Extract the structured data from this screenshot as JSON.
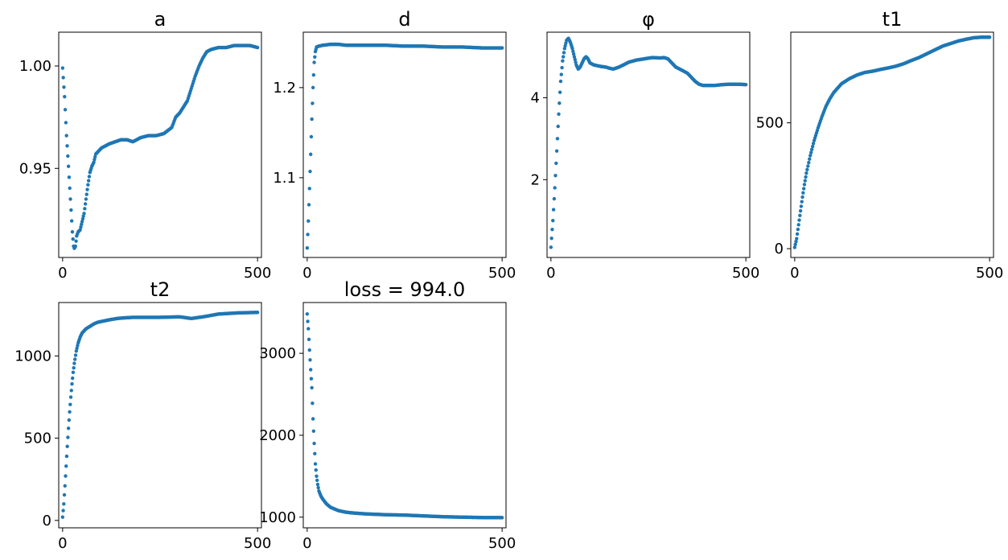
{
  "chart_data": [
    {
      "type": "scatter",
      "title": "a",
      "xlabel": "",
      "ylabel": "",
      "xlim": [
        -10,
        510
      ],
      "ylim": [
        0.9065,
        1.0165
      ],
      "xticks": [
        0,
        500
      ],
      "xtick_labels": [
        "0",
        "500"
      ],
      "yticks": [
        0.95,
        1.0
      ],
      "ytick_labels": [
        "0.95",
        "1.00"
      ],
      "color": "#1f77b4",
      "x": [
        0,
        5,
        10,
        15,
        20,
        25,
        28,
        30,
        33,
        36,
        40,
        45,
        50,
        55,
        60,
        65,
        70,
        75,
        80,
        85,
        90,
        100,
        110,
        120,
        135,
        150,
        165,
        180,
        200,
        220,
        240,
        260,
        280,
        290,
        300,
        310,
        320,
        330,
        340,
        350,
        360,
        370,
        380,
        400,
        420,
        440,
        460,
        480,
        500
      ],
      "y": [
        0.999,
        0.985,
        0.966,
        0.951,
        0.935,
        0.919,
        0.912,
        0.911,
        0.912,
        0.917,
        0.919,
        0.92,
        0.924,
        0.928,
        0.935,
        0.942,
        0.948,
        0.951,
        0.953,
        0.957,
        0.958,
        0.96,
        0.961,
        0.962,
        0.963,
        0.964,
        0.964,
        0.963,
        0.965,
        0.966,
        0.966,
        0.967,
        0.97,
        0.975,
        0.977,
        0.98,
        0.983,
        0.989,
        0.995,
        1.0,
        1.004,
        1.007,
        1.008,
        1.009,
        1.009,
        1.01,
        1.01,
        1.01,
        1.009
      ]
    },
    {
      "type": "scatter",
      "title": "d",
      "xlabel": "",
      "ylabel": "",
      "xlim": [
        -10,
        510
      ],
      "ylim": [
        1.0115,
        1.2615
      ],
      "xticks": [
        0,
        500
      ],
      "xtick_labels": [
        "0",
        "500"
      ],
      "yticks": [
        1.1,
        1.2
      ],
      "ytick_labels": [
        "1.1",
        "1.2"
      ],
      "color": "#1f77b4",
      "x": [
        0,
        3,
        6,
        9,
        12,
        15,
        18,
        21,
        24,
        30,
        40,
        60,
        80,
        100,
        150,
        200,
        250,
        300,
        350,
        400,
        450,
        500
      ],
      "y": [
        1.022,
        1.052,
        1.088,
        1.126,
        1.165,
        1.2,
        1.228,
        1.24,
        1.245,
        1.246,
        1.247,
        1.248,
        1.248,
        1.247,
        1.247,
        1.247,
        1.246,
        1.246,
        1.245,
        1.245,
        1.244,
        1.244
      ]
    },
    {
      "type": "scatter",
      "title": "φ",
      "xlabel": "",
      "ylabel": "",
      "xlim": [
        -10,
        510
      ],
      "ylim": [
        0.1,
        5.6
      ],
      "xticks": [
        0,
        500
      ],
      "xtick_labels": [
        "0",
        "500"
      ],
      "yticks": [
        2,
        4
      ],
      "ytick_labels": [
        "2",
        "4"
      ],
      "color": "#1f77b4",
      "x": [
        0,
        5,
        10,
        15,
        20,
        25,
        30,
        35,
        40,
        45,
        50,
        55,
        60,
        65,
        70,
        75,
        80,
        85,
        90,
        95,
        100,
        110,
        120,
        130,
        140,
        150,
        160,
        175,
        190,
        200,
        220,
        240,
        260,
        280,
        290,
        300,
        310,
        320,
        330,
        340,
        350,
        360,
        370,
        380,
        390,
        400,
        420,
        440,
        460,
        480,
        500
      ],
      "y": [
        0.35,
        1.0,
        1.8,
        2.7,
        3.6,
        4.4,
        4.9,
        5.2,
        5.4,
        5.45,
        5.35,
        5.2,
        5.0,
        4.8,
        4.7,
        4.75,
        4.85,
        4.95,
        5.0,
        4.95,
        4.85,
        4.8,
        4.78,
        4.76,
        4.75,
        4.72,
        4.7,
        4.75,
        4.82,
        4.87,
        4.92,
        4.95,
        4.98,
        4.97,
        4.98,
        4.95,
        4.85,
        4.75,
        4.7,
        4.65,
        4.6,
        4.5,
        4.4,
        4.33,
        4.3,
        4.3,
        4.3,
        4.32,
        4.33,
        4.33,
        4.32
      ]
    },
    {
      "type": "scatter",
      "title": "t1",
      "xlabel": "",
      "ylabel": "",
      "xlim": [
        -10,
        510
      ],
      "ylim": [
        -35,
        860
      ],
      "xticks": [
        0,
        500
      ],
      "xtick_labels": [
        "0",
        "500"
      ],
      "yticks": [
        0,
        500
      ],
      "ytick_labels": [
        "0",
        "500"
      ],
      "color": "#1f77b4",
      "x": [
        0,
        5,
        10,
        15,
        20,
        25,
        30,
        40,
        50,
        60,
        70,
        80,
        90,
        100,
        120,
        140,
        160,
        180,
        200,
        220,
        240,
        260,
        280,
        300,
        320,
        340,
        360,
        380,
        400,
        420,
        440,
        460,
        480,
        500
      ],
      "y": [
        5,
        40,
        95,
        150,
        205,
        255,
        300,
        370,
        430,
        480,
        525,
        565,
        595,
        620,
        655,
        675,
        690,
        700,
        705,
        712,
        718,
        725,
        735,
        748,
        760,
        775,
        790,
        805,
        815,
        825,
        832,
        838,
        840,
        840
      ]
    },
    {
      "type": "scatter",
      "title": "t2",
      "xlabel": "",
      "ylabel": "",
      "xlim": [
        -10,
        510
      ],
      "ylim": [
        -45,
        1325
      ],
      "xticks": [
        0,
        500
      ],
      "xtick_labels": [
        "0",
        "500"
      ],
      "yticks": [
        0,
        500,
        1000
      ],
      "ytick_labels": [
        "0",
        "500",
        "1000"
      ],
      "color": "#1f77b4",
      "x": [
        0,
        3,
        6,
        9,
        12,
        15,
        18,
        21,
        24,
        27,
        30,
        35,
        40,
        45,
        50,
        60,
        70,
        80,
        90,
        100,
        120,
        140,
        160,
        180,
        200,
        250,
        300,
        330,
        360,
        400,
        450,
        500
      ],
      "y": [
        20,
        100,
        210,
        330,
        450,
        560,
        660,
        750,
        830,
        900,
        955,
        1030,
        1080,
        1115,
        1140,
        1165,
        1180,
        1195,
        1205,
        1210,
        1220,
        1228,
        1232,
        1235,
        1235,
        1235,
        1238,
        1228,
        1238,
        1255,
        1262,
        1265
      ]
    },
    {
      "type": "scatter",
      "title": "loss = 994.0",
      "xlabel": "",
      "ylabel": "",
      "xlim": [
        -10,
        510
      ],
      "ylim": [
        870,
        3620
      ],
      "xticks": [
        0,
        500
      ],
      "xtick_labels": [
        "0",
        "500"
      ],
      "yticks": [
        1000,
        2000,
        3000
      ],
      "ytick_labels": [
        "1000",
        "2000",
        "3000"
      ],
      "color": "#1f77b4",
      "x": [
        0,
        3,
        6,
        9,
        12,
        15,
        18,
        21,
        24,
        27,
        30,
        35,
        40,
        45,
        50,
        60,
        70,
        80,
        100,
        120,
        150,
        200,
        250,
        300,
        350,
        400,
        450,
        500
      ],
      "y": [
        3480,
        3300,
        3040,
        2800,
        2580,
        2200,
        1900,
        1650,
        1500,
        1400,
        1320,
        1260,
        1220,
        1190,
        1160,
        1120,
        1100,
        1080,
        1060,
        1050,
        1040,
        1030,
        1025,
        1015,
        1005,
        1000,
        995,
        994
      ]
    }
  ]
}
